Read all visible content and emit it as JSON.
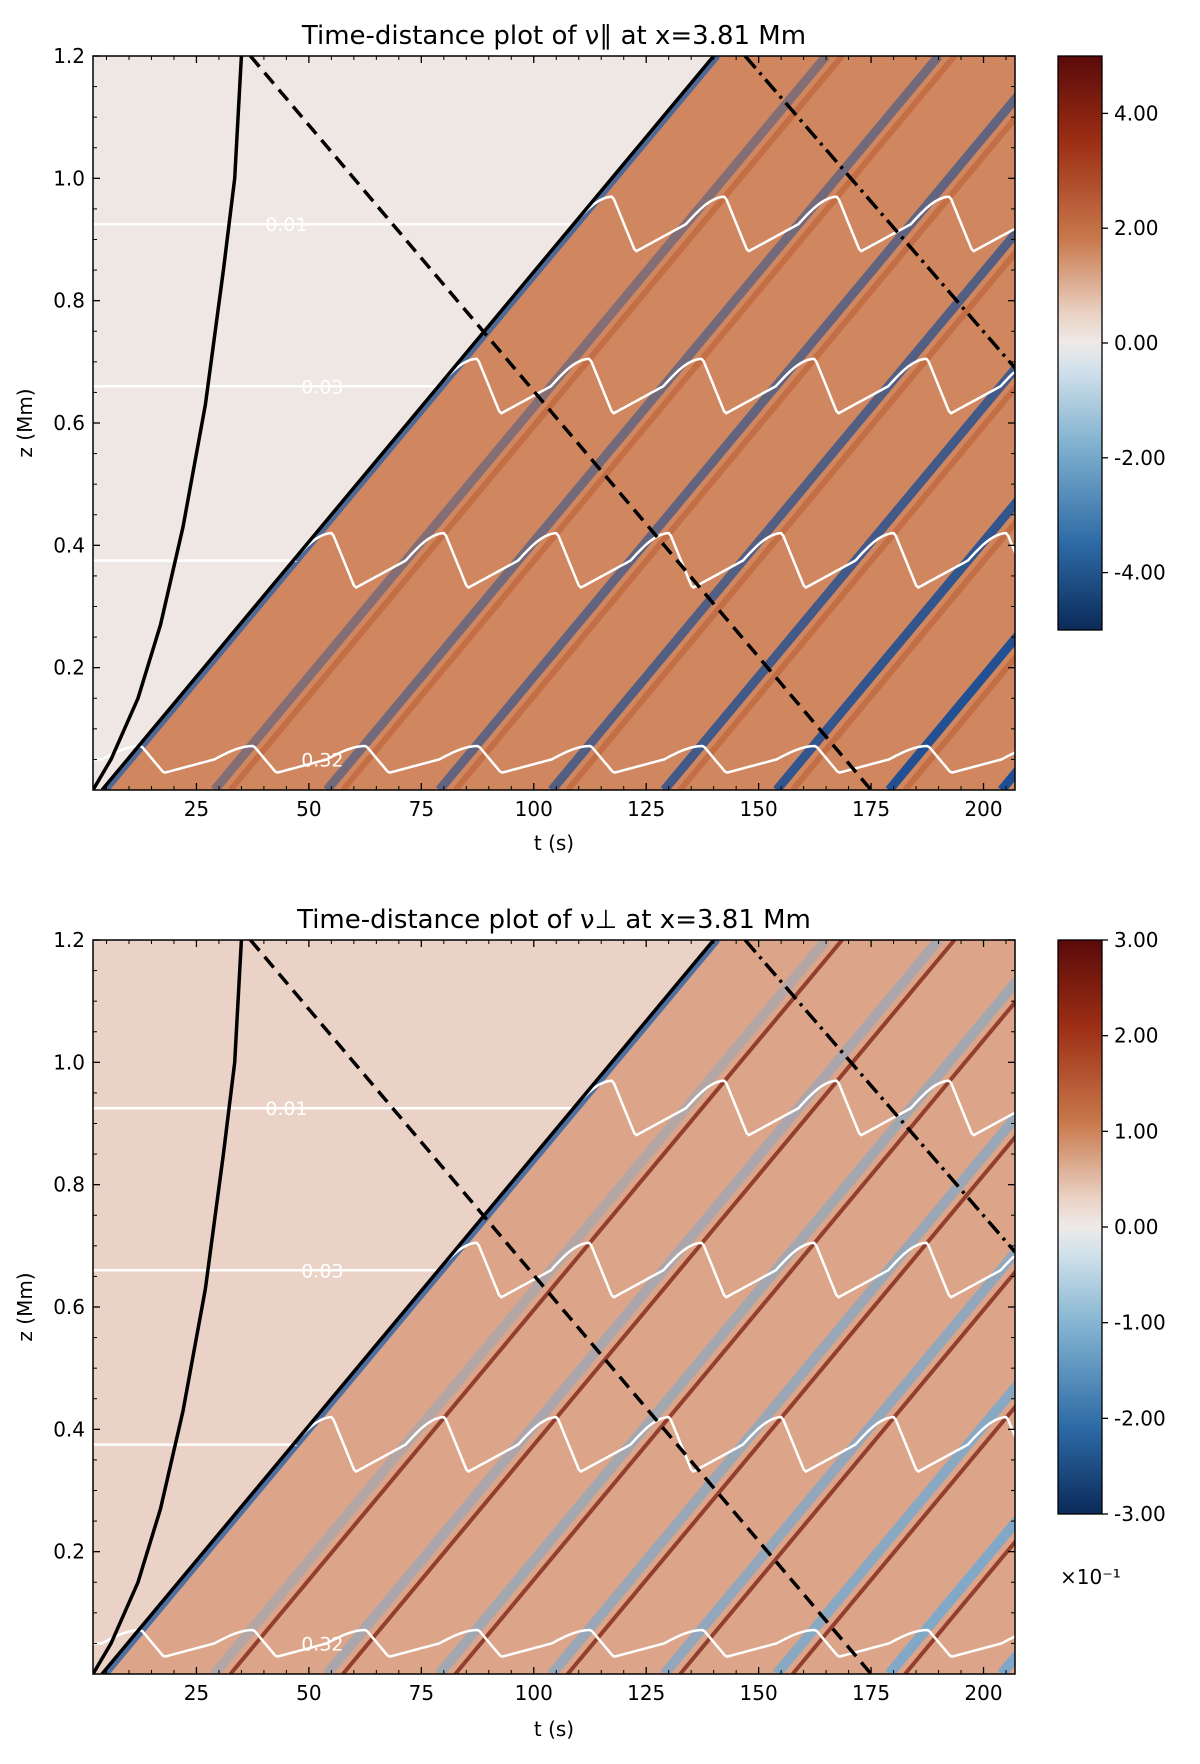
{
  "chart_data": [
    {
      "id": "top",
      "type": "heatmap",
      "title": "Time-distance plot of ν∥  at x=3.81 Mm",
      "xlabel": "t (s)",
      "ylabel": "z (Mm)",
      "xlim": [
        2,
        207
      ],
      "ylim": [
        0.0,
        1.2
      ],
      "xticks": [
        25,
        50,
        75,
        100,
        125,
        150,
        175,
        200
      ],
      "xtick_labels": [
        "25",
        "50",
        "75",
        "100",
        "125",
        "150",
        "175",
        "200"
      ],
      "yticks": [
        0.2,
        0.4,
        0.6,
        0.8,
        1.0,
        1.2
      ],
      "ytick_labels": [
        "0.2",
        "0.4",
        "0.6",
        "0.8",
        "1.0",
        "1.2"
      ],
      "colorbar": {
        "range": [
          -5,
          5
        ],
        "ticks": [
          4,
          2,
          0,
          -2,
          -4
        ],
        "tick_labels": [
          "4.00",
          "2.00",
          "0.00",
          "-2.00",
          "-4.00"
        ],
        "multiplier": ""
      },
      "contour_labels": [
        {
          "text": "0.01",
          "t": 45,
          "z": 0.925
        },
        {
          "text": "0.03",
          "t": 53,
          "z": 0.66
        },
        {
          "text": "0.32",
          "t": 53,
          "z": 0.05
        }
      ],
      "lines": {
        "solid_curve": [
          [
            2,
            0.0
          ],
          [
            6,
            0.05
          ],
          [
            12,
            0.15
          ],
          [
            17,
            0.27
          ],
          [
            22,
            0.43
          ],
          [
            27,
            0.63
          ],
          [
            31,
            0.85
          ],
          [
            33.5,
            1.0
          ],
          [
            35,
            1.2
          ]
        ],
        "solid_straight": [
          [
            4,
            0.0
          ],
          [
            140,
            1.2
          ]
        ],
        "dashed": [
          [
            37,
            1.2
          ],
          [
            175,
            0.0
          ]
        ],
        "dash_dot": [
          [
            147,
            1.2
          ],
          [
            207,
            0.69
          ]
        ]
      },
      "contour_levels_z": [
        0.925,
        0.66,
        0.375,
        0.05
      ]
    },
    {
      "id": "bottom",
      "type": "heatmap",
      "title": "Time-distance plot of ν⊥  at x=3.81 Mm",
      "xlabel": "t (s)",
      "ylabel": "z (Mm)",
      "xlim": [
        2,
        207
      ],
      "ylim": [
        0.0,
        1.2
      ],
      "xticks": [
        25,
        50,
        75,
        100,
        125,
        150,
        175,
        200
      ],
      "xtick_labels": [
        "25",
        "50",
        "75",
        "100",
        "125",
        "150",
        "175",
        "200"
      ],
      "yticks": [
        0.2,
        0.4,
        0.6,
        0.8,
        1.0,
        1.2
      ],
      "ytick_labels": [
        "0.2",
        "0.4",
        "0.6",
        "0.8",
        "1.0",
        "1.2"
      ],
      "colorbar": {
        "range": [
          -3,
          3
        ],
        "ticks": [
          3,
          2,
          1,
          0,
          -1,
          -2,
          -3
        ],
        "tick_labels": [
          "3.00",
          "2.00",
          "1.00",
          "0.00",
          "-1.00",
          "-2.00",
          "-3.00"
        ],
        "multiplier": "×10⁻¹"
      },
      "contour_labels": [
        {
          "text": "0.01",
          "t": 45,
          "z": 0.925
        },
        {
          "text": "0.03",
          "t": 53,
          "z": 0.66
        },
        {
          "text": "0.32",
          "t": 53,
          "z": 0.05
        }
      ],
      "lines": {
        "solid_curve": [
          [
            2,
            0.0
          ],
          [
            6,
            0.05
          ],
          [
            12,
            0.15
          ],
          [
            17,
            0.27
          ],
          [
            22,
            0.43
          ],
          [
            27,
            0.63
          ],
          [
            31,
            0.85
          ],
          [
            33.5,
            1.0
          ],
          [
            35,
            1.2
          ]
        ],
        "solid_straight": [
          [
            4,
            0.0
          ],
          [
            140,
            1.2
          ]
        ],
        "dashed": [
          [
            37,
            1.2
          ],
          [
            175,
            0.0
          ]
        ],
        "dash_dot": [
          [
            147,
            1.2
          ],
          [
            207,
            0.69
          ]
        ]
      },
      "contour_levels_z": [
        0.925,
        0.66,
        0.375,
        0.05
      ]
    }
  ],
  "colors": {
    "positive": "#c0643a",
    "negative": "#1a4a8a",
    "neutral": "#efe9e6",
    "contour": "#ffffff",
    "line": "#000000"
  }
}
